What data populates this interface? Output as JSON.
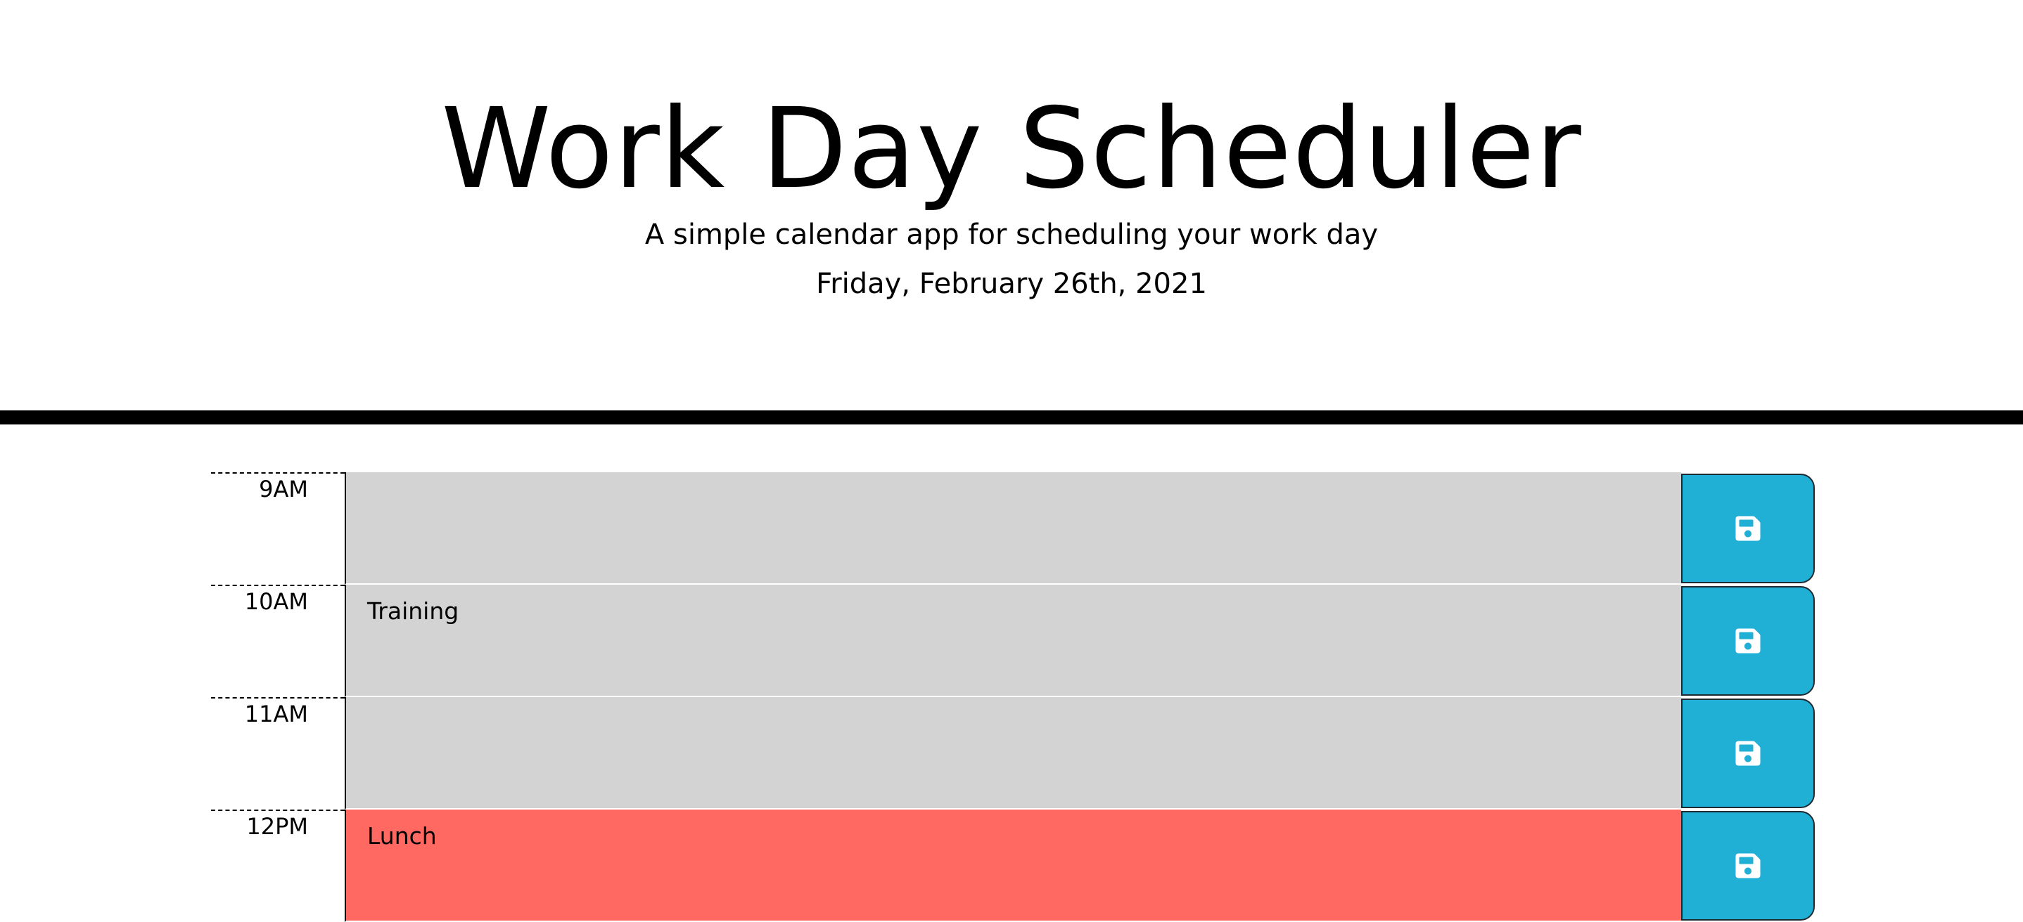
{
  "header": {
    "title": "Work Day Scheduler",
    "subtitle": "A simple calendar app for scheduling your work day",
    "current_day": "Friday, February 26th, 2021"
  },
  "time_blocks": [
    {
      "hour": "9AM",
      "text": "",
      "state": "past"
    },
    {
      "hour": "10AM",
      "text": "Training",
      "state": "past"
    },
    {
      "hour": "11AM",
      "text": "",
      "state": "past"
    },
    {
      "hour": "12PM",
      "text": "Lunch",
      "state": "present"
    }
  ],
  "colors": {
    "past": "#d3d3d3",
    "present": "#ff6961",
    "save_button": "#20b0d6"
  },
  "icons": {
    "save": "floppy-disk-icon"
  }
}
